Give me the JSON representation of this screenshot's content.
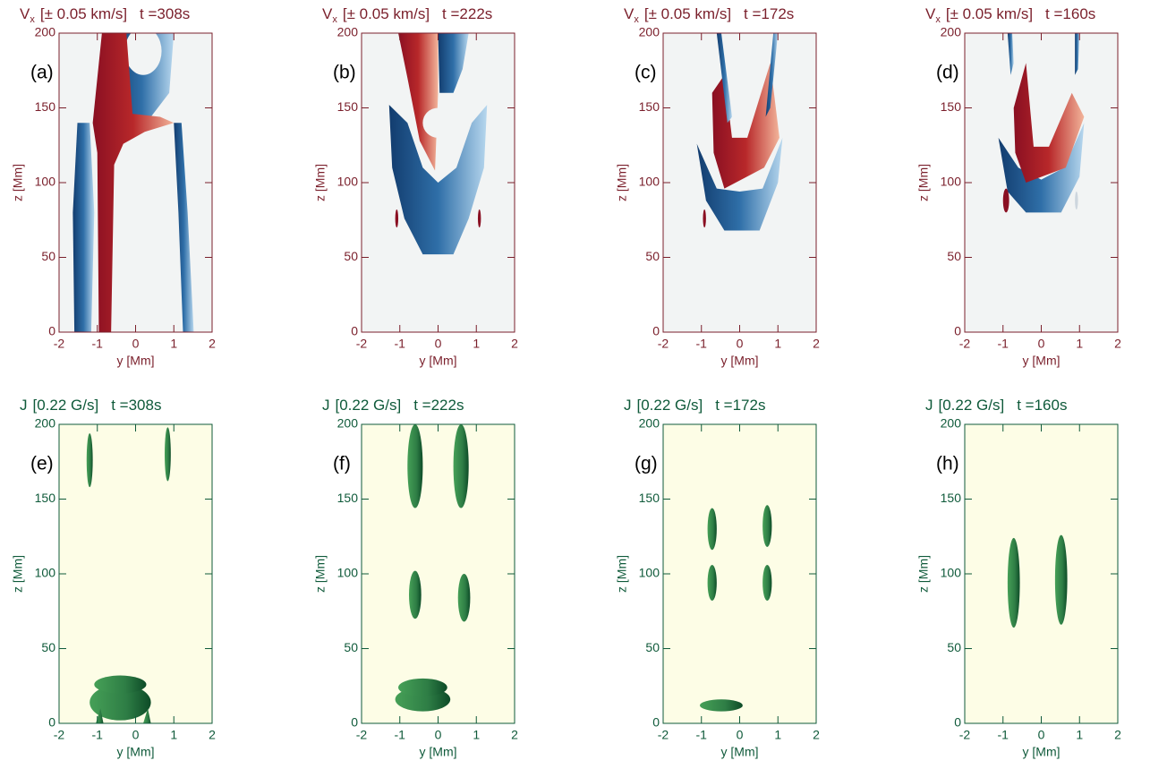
{
  "chart_data": [
    {
      "type": "image",
      "panel_label": "(a)",
      "quantity": "V",
      "quantity_subscript": "x",
      "scale": "[± 0.05 km/s]",
      "time": "t =308s",
      "xlabel": "y [Mm]",
      "ylabel": "z [Mm]",
      "xlim": [
        -2,
        2
      ],
      "ylim": [
        0,
        200
      ],
      "xticks": [
        -2,
        -1,
        0,
        1,
        2
      ],
      "yticks": [
        0,
        50,
        100,
        150,
        200
      ],
      "axis_color": "#7a1f2b",
      "background": "#f2f4f4"
    },
    {
      "type": "image",
      "panel_label": "(b)",
      "quantity": "V",
      "quantity_subscript": "x",
      "scale": "[± 0.05 km/s]",
      "time": "t =222s",
      "xlabel": "y [Mm]",
      "ylabel": "z [Mm]",
      "xlim": [
        -2,
        2
      ],
      "ylim": [
        0,
        200
      ],
      "xticks": [
        -2,
        -1,
        0,
        1,
        2
      ],
      "yticks": [
        0,
        50,
        100,
        150,
        200
      ],
      "axis_color": "#7a1f2b",
      "background": "#f2f4f4"
    },
    {
      "type": "image",
      "panel_label": "(c)",
      "quantity": "V",
      "quantity_subscript": "x",
      "scale": "[± 0.05 km/s]",
      "time": "t =172s",
      "xlabel": "y [Mm]",
      "ylabel": "z [Mm]",
      "xlim": [
        -2,
        2
      ],
      "ylim": [
        0,
        200
      ],
      "xticks": [
        -2,
        -1,
        0,
        1,
        2
      ],
      "yticks": [
        0,
        50,
        100,
        150,
        200
      ],
      "axis_color": "#7a1f2b",
      "background": "#f2f4f4"
    },
    {
      "type": "image",
      "panel_label": "(d)",
      "quantity": "V",
      "quantity_subscript": "x",
      "scale": "[± 0.05 km/s]",
      "time": "t =160s",
      "xlabel": "y [Mm]",
      "ylabel": "z [Mm]",
      "xlim": [
        -2,
        2
      ],
      "ylim": [
        0,
        200
      ],
      "xticks": [
        -2,
        -1,
        0,
        1,
        2
      ],
      "yticks": [
        0,
        50,
        100,
        150,
        200
      ],
      "axis_color": "#7a1f2b",
      "background": "#f2f4f4"
    },
    {
      "type": "image",
      "panel_label": "(e)",
      "quantity": "J",
      "scale": "[0.22 G/s]",
      "time": "t =308s",
      "xlabel": "y [Mm]",
      "ylabel": "z [Mm]",
      "xlim": [
        -2,
        2
      ],
      "ylim": [
        0,
        200
      ],
      "xticks": [
        -2,
        -1,
        0,
        1,
        2
      ],
      "yticks": [
        0,
        50,
        100,
        150,
        200
      ],
      "axis_color": "#0f5a3a",
      "background": "#fdfde6"
    },
    {
      "type": "image",
      "panel_label": "(f)",
      "quantity": "J",
      "scale": "[0.22 G/s]",
      "time": "t =222s",
      "xlabel": "y [Mm]",
      "ylabel": "z [Mm]",
      "xlim": [
        -2,
        2
      ],
      "ylim": [
        0,
        200
      ],
      "xticks": [
        -2,
        -1,
        0,
        1,
        2
      ],
      "yticks": [
        0,
        50,
        100,
        150,
        200
      ],
      "axis_color": "#0f5a3a",
      "background": "#fdfde6"
    },
    {
      "type": "image",
      "panel_label": "(g)",
      "quantity": "J",
      "scale": "[0.22 G/s]",
      "time": "t =172s",
      "xlabel": "y [Mm]",
      "ylabel": "z [Mm]",
      "xlim": [
        -2,
        2
      ],
      "ylim": [
        0,
        200
      ],
      "xticks": [
        -2,
        -1,
        0,
        1,
        2
      ],
      "yticks": [
        0,
        50,
        100,
        150,
        200
      ],
      "axis_color": "#0f5a3a",
      "background": "#fdfde6"
    },
    {
      "type": "image",
      "panel_label": "(h)",
      "quantity": "J",
      "scale": "[0.22 G/s]",
      "time": "t =160s",
      "xlabel": "y [Mm]",
      "ylabel": "z [Mm]",
      "xlim": [
        -2,
        2
      ],
      "ylim": [
        0,
        200
      ],
      "xticks": [
        -2,
        -1,
        0,
        1,
        2
      ],
      "yticks": [
        0,
        50,
        100,
        150,
        200
      ],
      "axis_color": "#0f5a3a",
      "background": "#fdfde6"
    }
  ]
}
